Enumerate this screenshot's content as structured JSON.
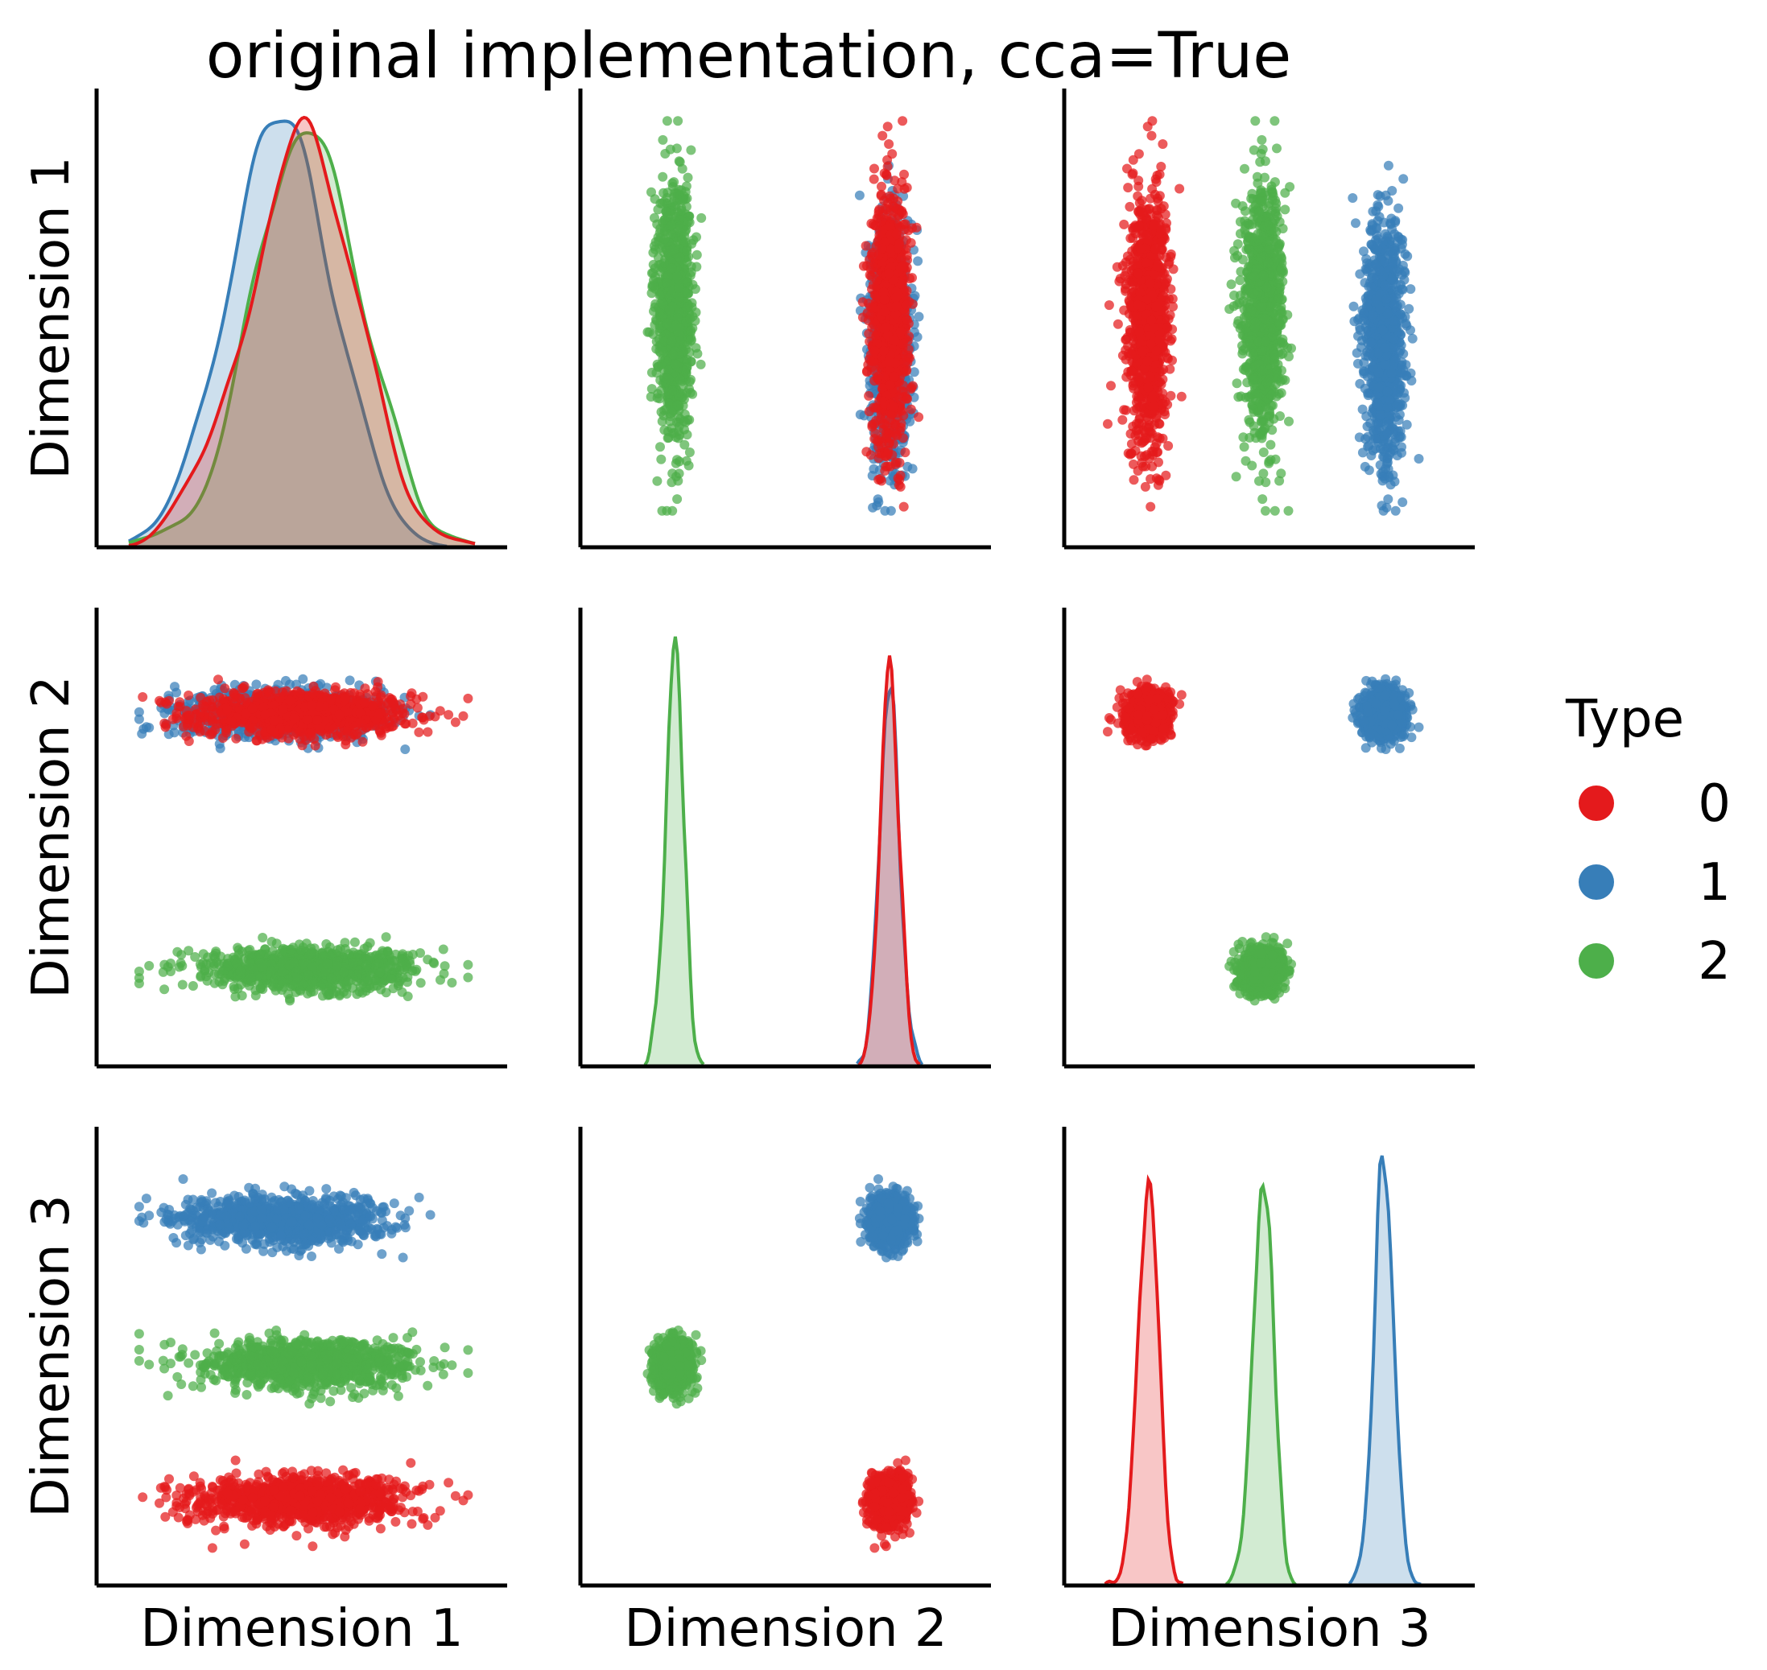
{
  "colors": {
    "0": "#e41a1c",
    "1": "#377eb8",
    "2": "#4daf4a"
  },
  "chart_data": {
    "type": "scatter",
    "subtype": "pairplot",
    "title": "original implementation, cca=True",
    "variables": [
      "Dimension 1",
      "Dimension 2",
      "Dimension 3"
    ],
    "diagonal": "kde",
    "offdiagonal": "scatter",
    "tick_labels_shown": false,
    "legend": {
      "title": "Type",
      "position": "right",
      "entries": [
        "0",
        "1",
        "2"
      ]
    },
    "groups": [
      {
        "name": "0",
        "color": "#e41a1c",
        "n_points": 1000,
        "mean": [
          0.5,
          0.8,
          0.15
        ],
        "sd": [
          0.16,
          0.028,
          0.028
        ],
        "dim1_range": [
          0.03,
          0.98
        ]
      },
      {
        "name": "1",
        "color": "#377eb8",
        "n_points": 1000,
        "mean": [
          0.44,
          0.8,
          0.83
        ],
        "sd": [
          0.15,
          0.028,
          0.028
        ],
        "dim1_range": [
          0.03,
          0.98
        ]
      },
      {
        "name": "2",
        "color": "#4daf4a",
        "n_points": 1000,
        "mean": [
          0.52,
          0.18,
          0.48
        ],
        "sd": [
          0.15,
          0.025,
          0.028
        ],
        "dim1_range": [
          0.03,
          0.98
        ]
      }
    ],
    "axis_range": [
      0,
      1
    ],
    "grid": false
  }
}
